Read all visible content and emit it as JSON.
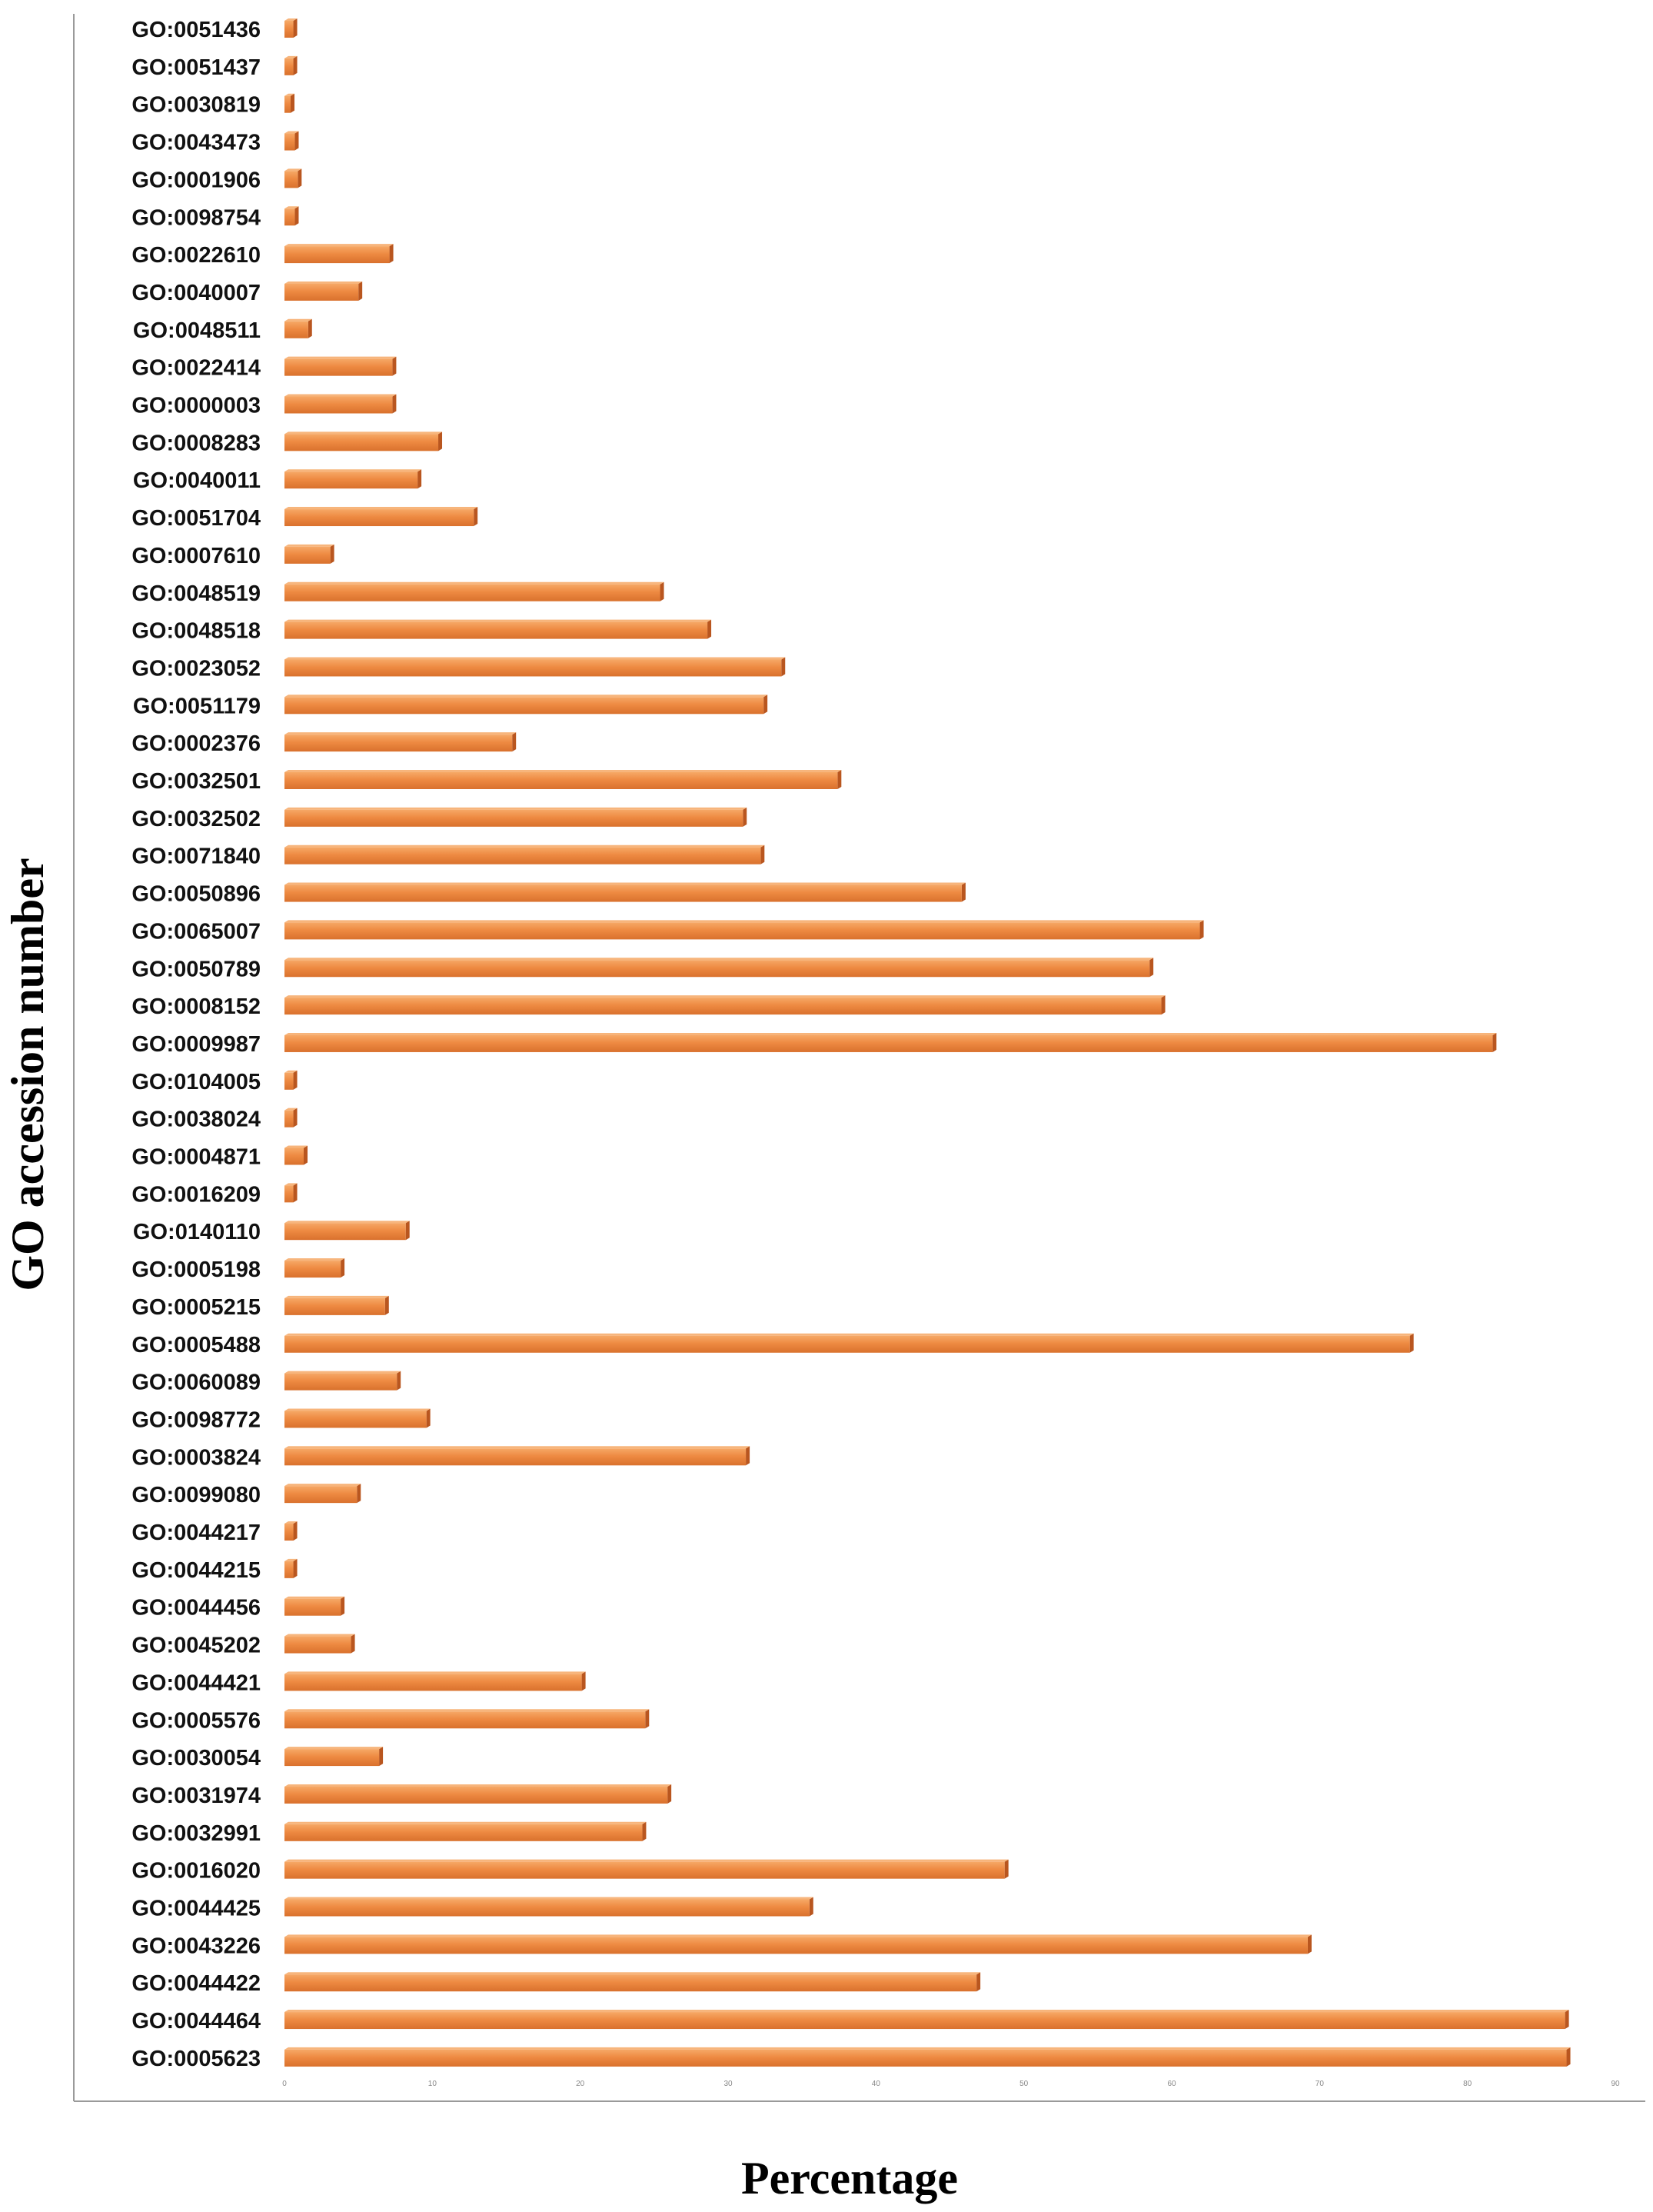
{
  "chart_data": {
    "type": "bar",
    "orientation": "horizontal",
    "xlabel": "Percentage",
    "ylabel": "GO accession number",
    "xlim": [
      0,
      90
    ],
    "xticks": [
      0,
      10,
      20,
      30,
      40,
      50,
      60,
      70,
      80,
      90
    ],
    "grid": false,
    "legend": "none",
    "colors": {
      "bar": "#ee8a42",
      "bar_shadow": "#b9561f",
      "bar_highlight": "#f7b57c",
      "axis": "#9a9a9a"
    },
    "categories": [
      "GO:0051436",
      "GO:0051437",
      "GO:0030819",
      "GO:0043473",
      "GO:0001906",
      "GO:0098754",
      "GO:0022610",
      "GO:0040007",
      "GO:0048511",
      "GO:0022414",
      "GO:0000003",
      "GO:0008283",
      "GO:0040011",
      "GO:0051704",
      "GO:0007610",
      "GO:0048519",
      "GO:0048518",
      "GO:0023052",
      "GO:0051179",
      "GO:0002376",
      "GO:0032501",
      "GO:0032502",
      "GO:0071840",
      "GO:0050896",
      "GO:0065007",
      "GO:0050789",
      "GO:0008152",
      "GO:0009987",
      "GO:0104005",
      "GO:0038024",
      "GO:0004871",
      "GO:0016209",
      "GO:0140110",
      "GO:0005198",
      "GO:0005215",
      "GO:0005488",
      "GO:0060089",
      "GO:0098772",
      "GO:0003824",
      "GO:0099080",
      "GO:0044217",
      "GO:0044215",
      "GO:0044456",
      "GO:0045202",
      "GO:0044421",
      "GO:0005576",
      "GO:0030054",
      "GO:0031974",
      "GO:0032991",
      "GO:0016020",
      "GO:0044425",
      "GO:0043226",
      "GO:0044422",
      "GO:0044464",
      "GO:0005623"
    ],
    "values": [
      0.6,
      0.6,
      0.4,
      0.7,
      0.9,
      0.7,
      7.1,
      5.0,
      1.6,
      7.3,
      7.3,
      10.4,
      9.0,
      12.8,
      3.1,
      25.4,
      28.6,
      33.6,
      32.4,
      15.4,
      37.4,
      31.0,
      32.2,
      45.8,
      61.9,
      58.5,
      59.3,
      81.7,
      0.6,
      0.6,
      1.3,
      0.6,
      8.2,
      3.8,
      6.8,
      76.1,
      7.6,
      9.6,
      31.2,
      4.9,
      0.6,
      0.6,
      3.8,
      4.5,
      20.1,
      24.4,
      6.4,
      25.9,
      24.2,
      48.7,
      35.5,
      69.2,
      46.8,
      86.6,
      86.7
    ]
  }
}
